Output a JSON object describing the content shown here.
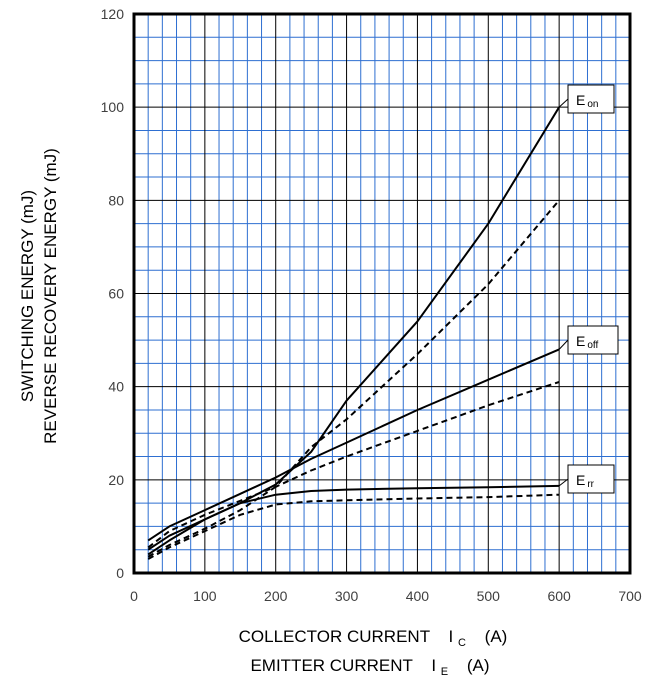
{
  "chart_data": {
    "type": "line",
    "title": "",
    "xlim": [
      0,
      700
    ],
    "ylim": [
      0,
      120
    ],
    "x_ticks": [
      0,
      100,
      200,
      300,
      400,
      500,
      600,
      700
    ],
    "y_ticks": [
      0,
      20,
      40,
      60,
      80,
      100,
      120
    ],
    "grid": true,
    "xlabel": {
      "line1": "COLLECTOR CURRENT",
      "line1_symbol": "I",
      "line1_sub": "C",
      "line1_unit": "(A)",
      "line2": "EMITTER CURRENT",
      "line2_symbol": "I",
      "line2_sub": "E",
      "line2_unit": "(A)"
    },
    "ylabel": {
      "line1": "SWITCHING ENERGY   (mJ)",
      "line2": "REVERSE RECOVERY ENERGY   (mJ)"
    },
    "legend": [
      {
        "label": "E",
        "sub": "on"
      },
      {
        "label": "E",
        "sub": "off"
      },
      {
        "label": "E",
        "sub": "rr"
      }
    ],
    "series": [
      {
        "label_index": 0,
        "style": "solid",
        "points": [
          [
            20,
            5
          ],
          [
            50,
            8
          ],
          [
            100,
            11.5
          ],
          [
            150,
            15
          ],
          [
            200,
            19
          ],
          [
            250,
            26
          ],
          [
            300,
            37
          ],
          [
            400,
            54
          ],
          [
            500,
            75
          ],
          [
            600,
            100
          ]
        ]
      },
      {
        "label_index": 0,
        "style": "dashed",
        "points": [
          [
            20,
            3.5
          ],
          [
            50,
            6
          ],
          [
            100,
            9.5
          ],
          [
            150,
            13.5
          ],
          [
            200,
            18.5
          ],
          [
            250,
            27
          ],
          [
            300,
            33
          ],
          [
            400,
            47
          ],
          [
            500,
            62
          ],
          [
            600,
            80
          ]
        ]
      },
      {
        "label_index": 1,
        "style": "solid",
        "points": [
          [
            20,
            7
          ],
          [
            50,
            10
          ],
          [
            100,
            13.5
          ],
          [
            150,
            17
          ],
          [
            200,
            20.5
          ],
          [
            250,
            24.5
          ],
          [
            300,
            28
          ],
          [
            400,
            35
          ],
          [
            500,
            41.5
          ],
          [
            600,
            48
          ]
        ]
      },
      {
        "label_index": 1,
        "style": "dashed",
        "points": [
          [
            20,
            5.5
          ],
          [
            50,
            9
          ],
          [
            100,
            12.5
          ],
          [
            150,
            15.5
          ],
          [
            200,
            18.5
          ],
          [
            250,
            22
          ],
          [
            300,
            25
          ],
          [
            400,
            30.5
          ],
          [
            500,
            36
          ],
          [
            600,
            41
          ]
        ]
      },
      {
        "label_index": 2,
        "style": "solid",
        "points": [
          [
            20,
            4
          ],
          [
            50,
            7
          ],
          [
            100,
            11.5
          ],
          [
            150,
            15
          ],
          [
            200,
            16.8
          ],
          [
            250,
            17.6
          ],
          [
            300,
            17.9
          ],
          [
            400,
            18.2
          ],
          [
            500,
            18.4
          ],
          [
            600,
            18.7
          ]
        ]
      },
      {
        "label_index": 2,
        "style": "dashed",
        "points": [
          [
            20,
            3
          ],
          [
            50,
            5.5
          ],
          [
            100,
            9
          ],
          [
            150,
            12.5
          ],
          [
            200,
            14.7
          ],
          [
            250,
            15.4
          ],
          [
            300,
            15.6
          ],
          [
            400,
            16
          ],
          [
            500,
            16.3
          ],
          [
            600,
            16.8
          ]
        ]
      }
    ]
  }
}
